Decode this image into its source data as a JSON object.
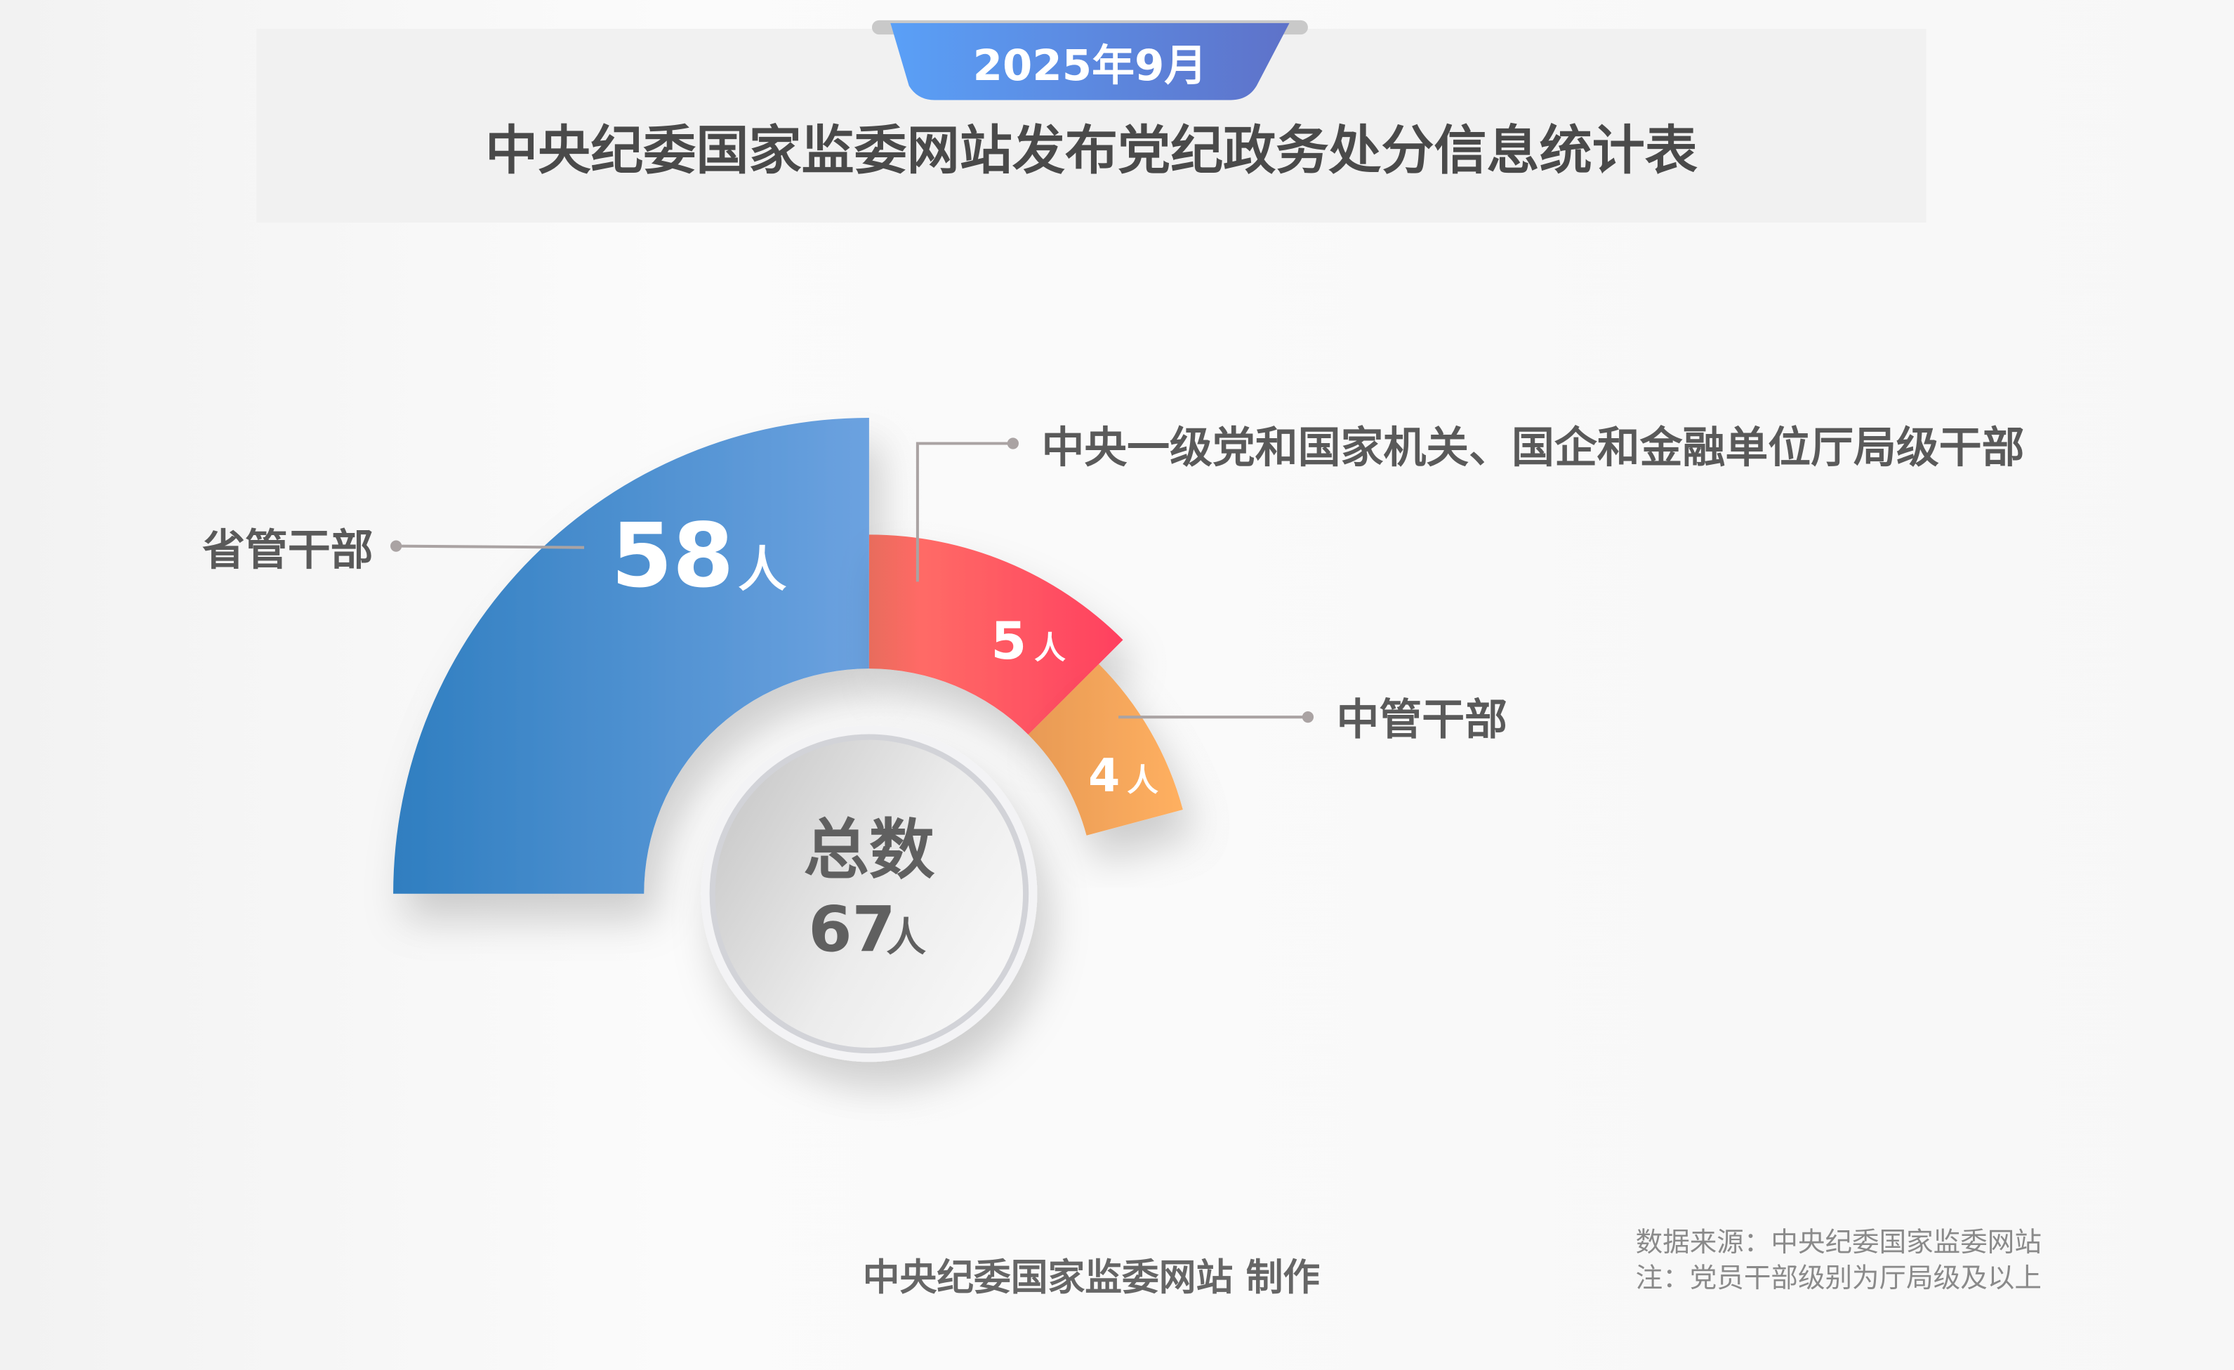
{
  "header": {
    "date_badge": "2025年9月",
    "title": "中央纪委国家监委网站发布党纪政务处分信息统计表"
  },
  "chart_data": {
    "type": "pie",
    "variant": "half-donut with varying radii",
    "unit": "人",
    "categories": [
      "省管干部",
      "中央一级党和国家机关、国企和金融单位厅局级干部",
      "中管干部"
    ],
    "values": [
      58,
      5,
      4
    ],
    "value_labels": [
      "58",
      "5",
      "4"
    ],
    "colors": [
      "#3a85c8",
      "#ff5466",
      "#f7a95a"
    ],
    "total_label": "总数",
    "total_value": "67"
  },
  "footer": {
    "producer": "中央纪委国家监委网站 制作",
    "source": "数据来源：中央纪委国家监委网站",
    "note": "注：党员干部级别为厅局级及以上"
  }
}
